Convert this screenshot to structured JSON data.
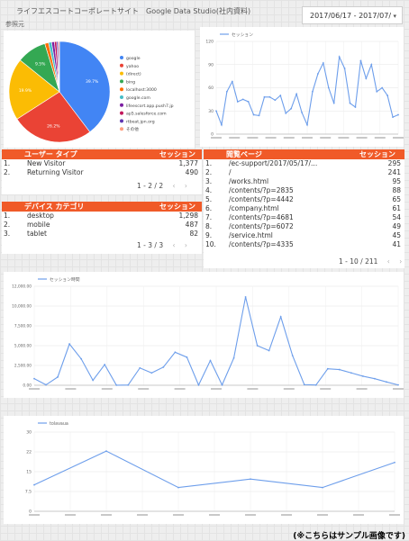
{
  "header": {
    "title": "ライフエスコートコーポレートサイト　Google Data Studio(社内資料)",
    "subtitle": "参照元",
    "date_range": "2017/06/17 - 2017/07/",
    "caret": "▾"
  },
  "footer_note": "(※こちらはサンプル画像です)",
  "tables": {
    "users": {
      "col1": "ユーザー タイプ",
      "col2": "セッション",
      "rows": [
        {
          "num": "1.",
          "label": "New Visitor",
          "value": "1,377"
        },
        {
          "num": "2.",
          "label": "Returning Visitor",
          "value": "490"
        }
      ],
      "pager": "1 - 2 / 2"
    },
    "devices": {
      "col1": "デバイス カテゴリ",
      "col2": "セッション",
      "rows": [
        {
          "num": "1.",
          "label": "desktop",
          "value": "1,298"
        },
        {
          "num": "2.",
          "label": "mobile",
          "value": "487"
        },
        {
          "num": "3.",
          "label": "tablet",
          "value": "82"
        }
      ],
      "pager": "1 - 3 / 3"
    },
    "landing": {
      "col1": "閲覧ページ",
      "col2": "セッション",
      "rows": [
        {
          "num": "1.",
          "label": "/ec-support/2017/05/17/...",
          "value": "295"
        },
        {
          "num": "2.",
          "label": "/",
          "value": "241"
        },
        {
          "num": "3.",
          "label": "/works.html",
          "value": "95"
        },
        {
          "num": "4.",
          "label": "/contents/?p=2835",
          "value": "88"
        },
        {
          "num": "5.",
          "label": "/contents/?p=4442",
          "value": "65"
        },
        {
          "num": "6.",
          "label": "/company.html",
          "value": "61"
        },
        {
          "num": "7.",
          "label": "/contents/?p=4681",
          "value": "54"
        },
        {
          "num": "8.",
          "label": "/contents/?p=6072",
          "value": "49"
        },
        {
          "num": "9.",
          "label": "/service.html",
          "value": "45"
        },
        {
          "num": "10.",
          "label": "/contents/?p=4335",
          "value": "41"
        }
      ],
      "pager": "1 - 10 / 211"
    }
  },
  "pager_arrows": {
    "prev": "‹",
    "next": "›"
  },
  "chart_data": [
    {
      "type": "pie",
      "slices": [
        {
          "label": "google",
          "value": 39.7,
          "color": "#4285f4"
        },
        {
          "label": "yahoo",
          "value": 26.2,
          "color": "#ea4335"
        },
        {
          "label": "(direct)",
          "value": 19.9,
          "color": "#fbbc04"
        },
        {
          "label": "bing",
          "value": 9.5,
          "color": "#34a853"
        },
        {
          "label": "localhost:3000",
          "value": 1.2,
          "color": "#ff6d00"
        },
        {
          "label": "google.com",
          "value": 1.0,
          "color": "#46bdc6"
        },
        {
          "label": "lifeescort.app.push7.jp",
          "value": 0.9,
          "color": "#7b1fa2"
        },
        {
          "label": "ap5.salesforce.com",
          "value": 0.7,
          "color": "#c2185b"
        },
        {
          "label": "rtbeat.jpn.org",
          "value": 0.5,
          "color": "#5e35b1"
        },
        {
          "label": "その他",
          "value": 0.4,
          "color": "#ff9e80"
        }
      ],
      "slice_labels": [
        "39.7%",
        "26.2%",
        "19.9%",
        "9.5%"
      ],
      "legend_position": "right"
    },
    {
      "type": "line",
      "series": [
        {
          "name": "セッション",
          "color": "#6d9eeb",
          "values": [
            30,
            12,
            55,
            68,
            42,
            45,
            42,
            25,
            24,
            48,
            48,
            44,
            50,
            27,
            33,
            52,
            28,
            12,
            55,
            78,
            92,
            60,
            40,
            100,
            85,
            40,
            35,
            95,
            72,
            90,
            55,
            60,
            50,
            22,
            25
          ]
        }
      ],
      "ylim": [
        0,
        120
      ],
      "yticks": [
        "120",
        "90",
        "60",
        "30",
        "0"
      ],
      "xtick_label_count": 11,
      "legend_position": "top-left",
      "grid": true
    },
    {
      "type": "line",
      "series": [
        {
          "name": "セッション時間",
          "color": "#6d9eeb",
          "values": [
            800,
            50,
            1000,
            5000,
            3200,
            600,
            2500,
            10,
            30,
            2100,
            1500,
            2200,
            4000,
            3400,
            30,
            3000,
            40,
            3300,
            10700,
            4800,
            4200,
            8300,
            3600,
            80,
            30,
            2000,
            1900,
            1500,
            1100,
            800,
            400,
            40
          ]
        }
      ],
      "ylim": [
        0,
        12000
      ],
      "yticks": [
        "12,000.00",
        "10,000.00",
        "7,500.00",
        "5,000.00",
        "2,500.00",
        "0.00"
      ],
      "xtick_label_count": 11,
      "legend_position": "top-left",
      "grid": true
    },
    {
      "type": "line",
      "series": [
        {
          "name": "tolavaua",
          "color": "#6d9eeb",
          "values": [
            10,
            22.8,
            9,
            12.2,
            9,
            18.5
          ]
        }
      ],
      "ylim": [
        0,
        30
      ],
      "yticks": [
        "30",
        "22",
        "15",
        "7.5",
        "0"
      ],
      "xtick_label_count": 11,
      "legend_position": "top-left",
      "grid": true
    }
  ]
}
